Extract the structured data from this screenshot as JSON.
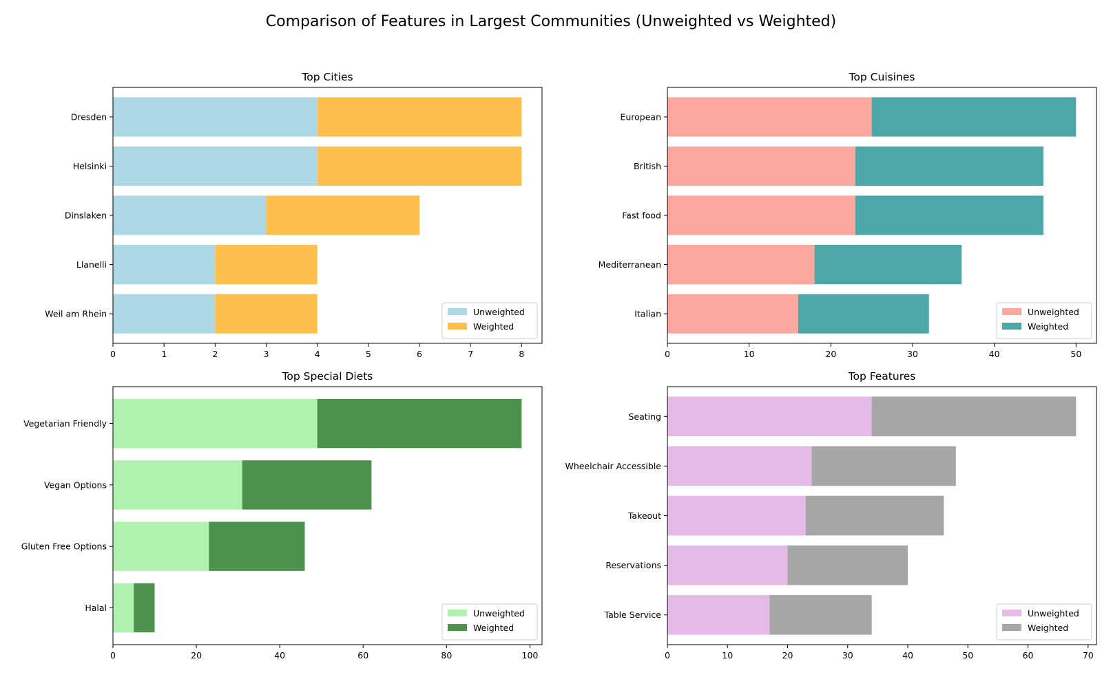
{
  "figure_title": "Comparison of Features in Largest Communities (Unweighted vs Weighted)",
  "chart_data": [
    {
      "type": "bar",
      "orientation": "horizontal",
      "stacked": true,
      "title": "Top Cities",
      "categories": [
        "Dresden",
        "Helsinki",
        "Dinslaken",
        "Llanelli",
        "Weil am Rhein"
      ],
      "series": [
        {
          "name": "Unweighted",
          "values": [
            4,
            4,
            3,
            2,
            2
          ],
          "color": "#add8e6"
        },
        {
          "name": "Weighted",
          "values": [
            4,
            4,
            3,
            2,
            2
          ],
          "color": "#ffbf4d"
        }
      ],
      "xlim": [
        0,
        8.4
      ],
      "xticks": [
        0,
        1,
        2,
        3,
        4,
        5,
        6,
        7,
        8
      ],
      "legend": "lower right"
    },
    {
      "type": "bar",
      "orientation": "horizontal",
      "stacked": true,
      "title": "Top Cuisines",
      "categories": [
        "European",
        "British",
        "Fast food",
        "Mediterranean",
        "Italian"
      ],
      "series": [
        {
          "name": "Unweighted",
          "values": [
            25,
            23,
            23,
            18,
            16
          ],
          "color": "#fba79d"
        },
        {
          "name": "Weighted",
          "values": [
            25,
            23,
            23,
            18,
            16
          ],
          "color": "#4da7a6"
        }
      ],
      "xlim": [
        0,
        52.5
      ],
      "xticks": [
        0,
        10,
        20,
        30,
        40,
        50
      ],
      "legend": "lower right"
    },
    {
      "type": "bar",
      "orientation": "horizontal",
      "stacked": true,
      "title": "Top Special Diets",
      "categories": [
        "Vegetarian Friendly",
        "Vegan Options",
        "Gluten Free Options",
        "Halal"
      ],
      "series": [
        {
          "name": "Unweighted",
          "values": [
            49,
            31,
            23,
            5
          ],
          "color": "#b0f3b0"
        },
        {
          "name": "Weighted",
          "values": [
            49,
            31,
            23,
            5
          ],
          "color": "#4c924c"
        }
      ],
      "xlim": [
        0,
        102.9
      ],
      "xticks": [
        0,
        20,
        40,
        60,
        80,
        100
      ],
      "legend": "lower right"
    },
    {
      "type": "bar",
      "orientation": "horizontal",
      "stacked": true,
      "title": "Top Features",
      "categories": [
        "Seating",
        "Wheelchair Accessible",
        "Takeout",
        "Reservations",
        "Table Service"
      ],
      "series": [
        {
          "name": "Unweighted",
          "values": [
            34,
            24,
            23,
            20,
            17
          ],
          "color": "#e6bae6"
        },
        {
          "name": "Weighted",
          "values": [
            34,
            24,
            23,
            20,
            17
          ],
          "color": "#a6a6a6"
        }
      ],
      "xlim": [
        0,
        71.4
      ],
      "xticks": [
        0,
        10,
        20,
        30,
        40,
        50,
        60,
        70
      ],
      "legend": "lower right"
    }
  ]
}
